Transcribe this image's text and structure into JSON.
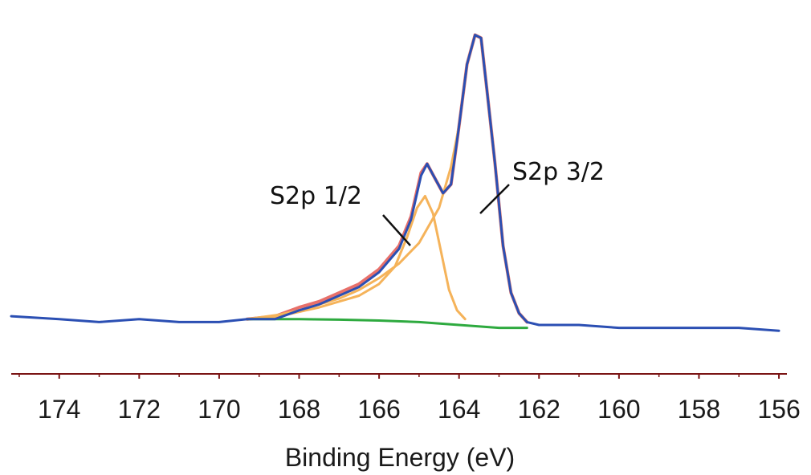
{
  "chart_data": {
    "type": "line",
    "xlabel": "Binding Energy (eV)",
    "ylabel": "",
    "xlim": [
      175.2,
      155.8
    ],
    "x_reversed": true,
    "grid": false,
    "legend": "none",
    "xticks": [
      174,
      172,
      170,
      168,
      166,
      164,
      162,
      160,
      158,
      156
    ],
    "annotations": [
      {
        "text": "S2p 1/2",
        "peak_x": 164.8
      },
      {
        "text": "S2p 3/2",
        "peak_x": 163.6
      }
    ],
    "series": [
      {
        "role": "measured",
        "color": "#e8706a",
        "x": [
          169.3,
          168.6,
          168.0,
          167.5,
          167.0,
          166.5,
          166.0,
          165.5,
          165.2,
          164.95,
          164.8,
          164.6,
          164.4,
          164.2,
          164.0,
          163.8,
          163.6,
          163.45,
          163.3,
          163.1,
          162.9,
          162.7,
          162.5,
          162.3
        ],
        "y": [
          0.02,
          0.03,
          0.06,
          0.08,
          0.11,
          0.14,
          0.19,
          0.27,
          0.37,
          0.52,
          0.55,
          0.5,
          0.45,
          0.48,
          0.68,
          0.89,
          0.99,
          0.98,
          0.8,
          0.55,
          0.27,
          0.11,
          0.04,
          0.01
        ]
      },
      {
        "role": "envelope",
        "color": "#2b4fb3",
        "x": [
          175.2,
          174.0,
          173.0,
          172.0,
          171.0,
          170.0,
          169.3,
          168.6,
          168.0,
          167.5,
          167.0,
          166.5,
          166.0,
          165.5,
          165.2,
          164.95,
          164.8,
          164.6,
          164.4,
          164.2,
          164.0,
          163.8,
          163.6,
          163.45,
          163.3,
          163.1,
          162.9,
          162.7,
          162.5,
          162.3,
          162.0,
          161.0,
          160.0,
          159.0,
          158.0,
          157.0,
          156.0
        ],
        "y": [
          0.03,
          0.02,
          0.01,
          0.02,
          0.01,
          0.01,
          0.02,
          0.02,
          0.05,
          0.07,
          0.1,
          0.13,
          0.18,
          0.26,
          0.36,
          0.51,
          0.55,
          0.5,
          0.45,
          0.48,
          0.68,
          0.89,
          0.99,
          0.98,
          0.8,
          0.55,
          0.27,
          0.11,
          0.04,
          0.01,
          0.0,
          0.0,
          -0.01,
          -0.01,
          -0.01,
          -0.01,
          -0.02
        ]
      },
      {
        "role": "component S2p 1/2",
        "color": "#f5b35a",
        "x": [
          169.3,
          168.5,
          168.0,
          167.5,
          167.0,
          166.5,
          166.0,
          165.6,
          165.3,
          165.05,
          164.85,
          164.65,
          164.45,
          164.25,
          164.05,
          163.85
        ],
        "y": [
          0.02,
          0.03,
          0.045,
          0.06,
          0.08,
          0.1,
          0.14,
          0.2,
          0.3,
          0.4,
          0.44,
          0.38,
          0.25,
          0.12,
          0.05,
          0.02
        ]
      },
      {
        "role": "component S2p 3/2",
        "color": "#f5b35a",
        "x": [
          169.3,
          168.5,
          168.0,
          167.5,
          167.0,
          166.5,
          166.0,
          165.5,
          165.0,
          164.5,
          164.2,
          164.0,
          163.8,
          163.6,
          163.45,
          163.3,
          163.1,
          162.9,
          162.7,
          162.5,
          162.3
        ],
        "y": [
          0.02,
          0.035,
          0.05,
          0.07,
          0.09,
          0.12,
          0.16,
          0.21,
          0.28,
          0.4,
          0.54,
          0.68,
          0.89,
          0.99,
          0.98,
          0.8,
          0.55,
          0.27,
          0.11,
          0.04,
          0.01
        ]
      },
      {
        "role": "background",
        "color": "#2eaa3f",
        "x": [
          169.3,
          168.0,
          167.0,
          166.0,
          165.0,
          164.0,
          163.0,
          162.3
        ],
        "y": [
          0.02,
          0.02,
          0.018,
          0.015,
          0.01,
          0.0,
          -0.01,
          -0.01
        ]
      }
    ]
  }
}
